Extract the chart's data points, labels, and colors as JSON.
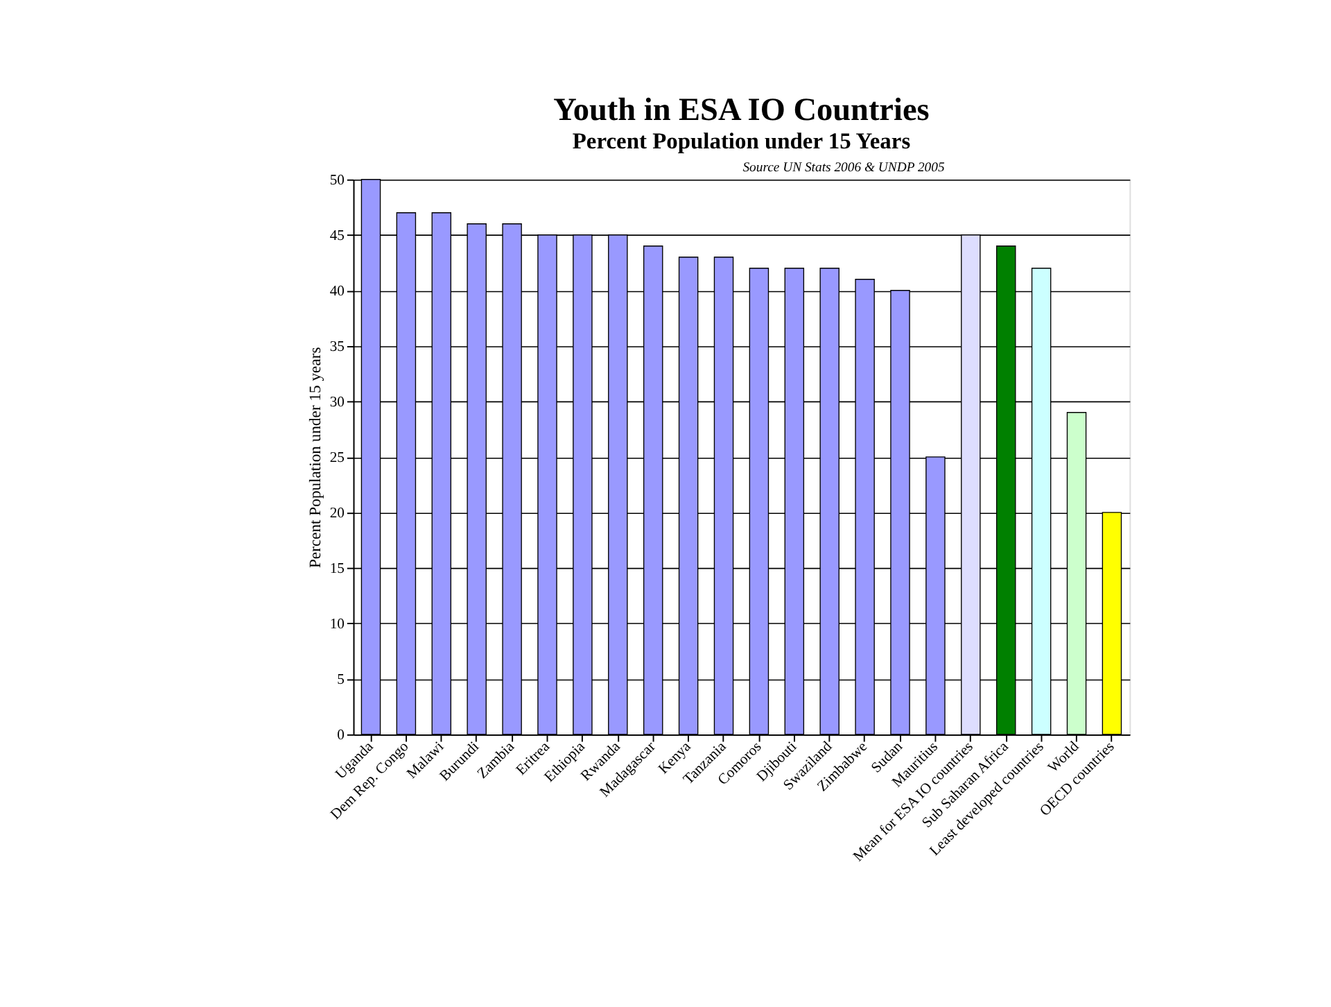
{
  "chart_data": {
    "type": "bar",
    "title": "Youth in ESA IO Countries",
    "subtitle": "Percent Population under 15 Years",
    "annotations": [
      "Source UN Stats 2006 & UNDP 2005"
    ],
    "ylabel": "Percent Population under 15 years",
    "categories": [
      "Uganda",
      "Dem Rep. Congo",
      "Malawi",
      "Burundi",
      "Zambia",
      "Eritrea",
      "Ethiopia",
      "Rwanda",
      "Madagascar",
      "Kenya",
      "Tanzania",
      "Comoros",
      "Djibouti",
      "Swaziland",
      "Zimbabwe",
      "Sudan",
      "Mauritius",
      "Mean for ESA IO countries",
      "Sub Saharan Africa",
      "Least developed countries",
      "World",
      "OECD countries"
    ],
    "values": [
      50,
      47,
      47,
      46,
      46,
      45,
      45,
      45,
      44,
      43,
      43,
      42,
      42,
      42,
      41,
      40,
      25,
      45,
      44,
      42,
      29,
      20
    ],
    "colors": [
      "#9999ff",
      "#9999ff",
      "#9999ff",
      "#9999ff",
      "#9999ff",
      "#9999ff",
      "#9999ff",
      "#9999ff",
      "#9999ff",
      "#9999ff",
      "#9999ff",
      "#9999ff",
      "#9999ff",
      "#9999ff",
      "#9999ff",
      "#9999ff",
      "#9999ff",
      "#ddddff",
      "#008000",
      "#ccffff",
      "#ccffcc",
      "#ffff00"
    ],
    "ylim": [
      0,
      50
    ],
    "yticks": [
      0,
      5,
      10,
      15,
      20,
      25,
      30,
      35,
      40,
      45,
      50
    ],
    "grid": "y"
  }
}
